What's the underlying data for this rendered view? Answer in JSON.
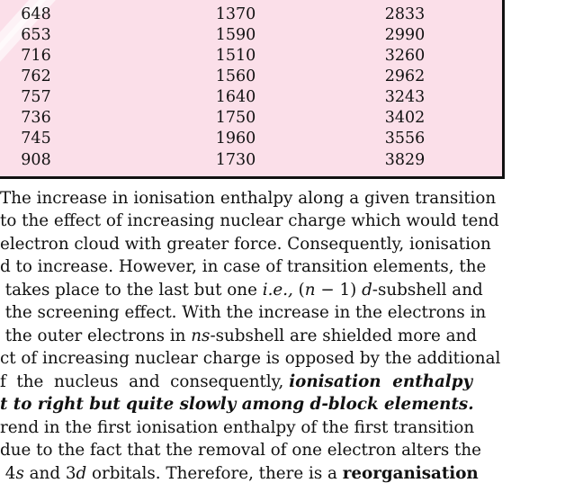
{
  "table": {
    "rows": [
      [
        "648",
        "1370",
        "2833"
      ],
      [
        "653",
        "1590",
        "2990"
      ],
      [
        "716",
        "1510",
        "3260"
      ],
      [
        "762",
        "1560",
        "2962"
      ],
      [
        "757",
        "1640",
        "3243"
      ],
      [
        "736",
        "1750",
        "3402"
      ],
      [
        "745",
        "1960",
        "3556"
      ],
      [
        "908",
        "1730",
        "3829"
      ]
    ]
  },
  "paragraph": {
    "l1": "The increase in ionisation enthalpy along a given transition",
    "l2": "to the effect of increasing nuclear charge which would tend",
    "l3": "electron cloud with greater force. Consequently, ionisation",
    "l4": "d to increase. However, in case of transition elements, the",
    "l5a": " takes place to the last but one ",
    "l5b": "i.e.,",
    "l5c": " (",
    "l5d": "n",
    "l5e": " − 1) ",
    "l5f": "d",
    "l5g": "-subshell and",
    "l6": " the screening effect. With the increase in the electrons in",
    "l7a": " the outer electrons in ",
    "l7b": "ns",
    "l7c": "-subshell are shielded more and",
    "l8": "ct of increasing nuclear charge is opposed by the additional",
    "l9a": "f  the  nucleus  and  consequently, ",
    "l9b": "ionisation  enthalpy",
    "l10": "t to right but quite slowly among d-block elements.",
    "l11": "rend in the first ionisation enthalpy of the first transition",
    "l12": "due to the fact that the removal of one electron alters the",
    "l13a": " 4",
    "l13b": "s",
    "l13c": " and 3",
    "l13d": "d",
    "l13e": " orbitals. Therefore, there is a ",
    "l13f": "reorganisation"
  }
}
